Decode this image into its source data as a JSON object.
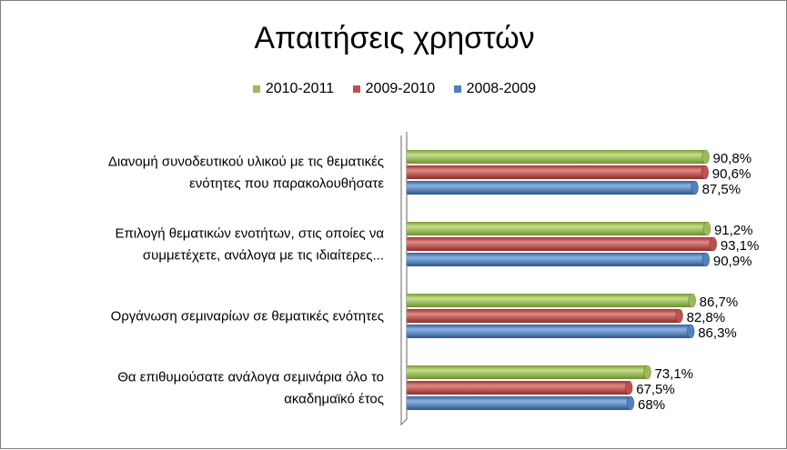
{
  "chart_data": {
    "type": "bar",
    "orientation": "horizontal",
    "title": "Απαιτήσεις χρηστών",
    "categories": [
      [
        "Διανομή συνοδευτικού υλικού με τις θεματικές",
        "ενότητες που παρακολουθήσατε"
      ],
      [
        "Επιλογή θεματικών ενοτήτων, στις οποίες να",
        "συμμετέχετε, ανάλογα με τις ιδιαίτερες..."
      ],
      [
        "Οργάνωση σεμιναρίων σε θεματικές ενότητες"
      ],
      [
        "Θα επιθυμούσατε ανάλογα σεμινάρια όλο το",
        "ακαδημαϊκό έτος"
      ]
    ],
    "series": [
      {
        "name": "2010-2011",
        "color": "#9bbb59",
        "values": [
          90.8,
          91.2,
          86.7,
          73.1
        ],
        "labels": [
          "90,8%",
          "91,2%",
          "86,7%",
          "73,1%"
        ]
      },
      {
        "name": "2009-2010",
        "color": "#c0504d",
        "values": [
          90.6,
          93.1,
          82.8,
          67.5
        ],
        "labels": [
          "90,6%",
          "93,1%",
          "82,8%",
          "67,5%"
        ]
      },
      {
        "name": "2008-2009",
        "color": "#4f81bd",
        "values": [
          87.5,
          90.9,
          86.3,
          68.0
        ],
        "labels": [
          "87,5%",
          "90,9%",
          "86,3%",
          "68%"
        ]
      }
    ],
    "legend_order": [
      "2010-2011",
      "2009-2010",
      "2008-2009"
    ],
    "legend_position": "top",
    "xlim": [
      0,
      100
    ],
    "grid": false
  }
}
